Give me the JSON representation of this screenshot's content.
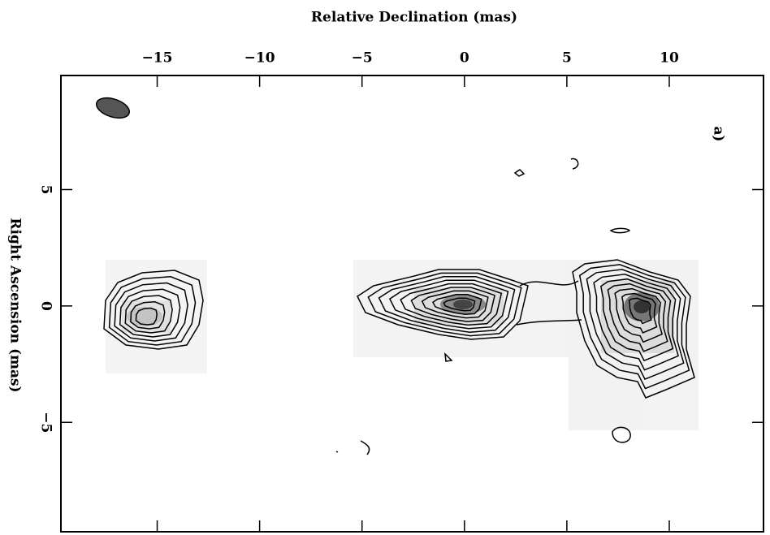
{
  "chart_data": {
    "type": "contour",
    "x_label": "Relative Declination  (mas)",
    "y_label": "Right Ascension  (mas)",
    "annotation": "a)",
    "x_axis_position": "top",
    "xlim": [
      -19.7,
      14.6
    ],
    "ylim": [
      -9.7,
      9.9
    ],
    "xticks": [
      {
        "value": -15,
        "label": "−15"
      },
      {
        "value": -10,
        "label": "−10"
      },
      {
        "value": -5,
        "label": "−5"
      },
      0,
      5,
      10
    ],
    "yticks": [
      5,
      0,
      {
        "value": -5,
        "label": "−5"
      }
    ],
    "grid": false
  }
}
